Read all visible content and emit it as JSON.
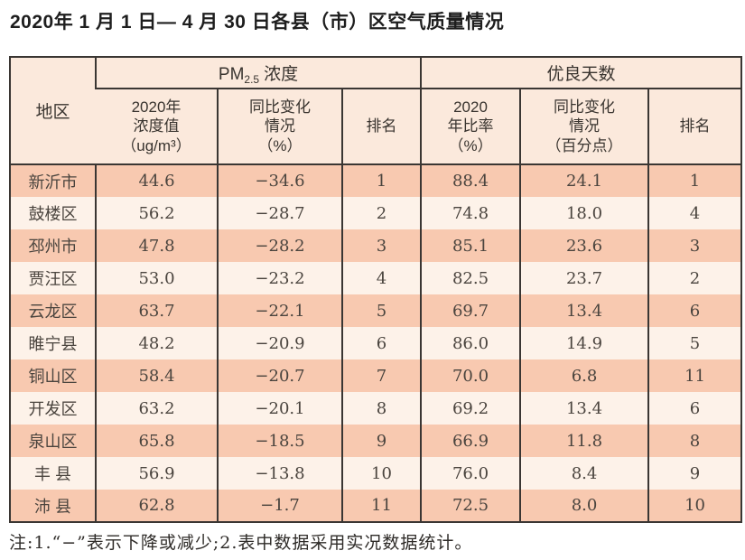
{
  "title": "2020年 1 月 1 日— 4 月 30 日各县（市）区空气质量情况",
  "note": "注:1.“−”表示下降或减少;2.表中数据采用实况数据统计。",
  "colors": {
    "row_odd": "#f8c9b0",
    "row_even": "#fdf2e9",
    "header_bg": "#fbe9dc",
    "border": "#3a3633"
  },
  "table": {
    "corner_header": "地区",
    "group_pm25": {
      "prefix": "PM",
      "sub": "2.5",
      "suffix": "浓度"
    },
    "group_good_days": "优良天数",
    "subheaders": {
      "pm_value": "2020年\n浓度值\n（ug/m³）",
      "pm_change": "同比变化\n情况\n（%）",
      "pm_rank": "排名",
      "good_ratio": "2020\n年比率\n（%）",
      "good_change": "同比变化\n情况\n（百分点）",
      "good_rank": "排名"
    },
    "rows": [
      {
        "region": "新沂市",
        "values": [
          "44.6",
          "−34.6",
          "1",
          "88.4",
          "24.1",
          "1"
        ]
      },
      {
        "region": "鼓楼区",
        "values": [
          "56.2",
          "−28.7",
          "2",
          "74.8",
          "18.0",
          "4"
        ]
      },
      {
        "region": "邳州市",
        "values": [
          "47.8",
          "−28.2",
          "3",
          "85.1",
          "23.6",
          "3"
        ]
      },
      {
        "region": "贾汪区",
        "values": [
          "53.0",
          "−23.2",
          "4",
          "82.5",
          "23.7",
          "2"
        ]
      },
      {
        "region": "云龙区",
        "values": [
          "63.7",
          "−22.1",
          "5",
          "69.7",
          "13.4",
          "6"
        ]
      },
      {
        "region": "睢宁县",
        "values": [
          "48.2",
          "−20.9",
          "6",
          "86.0",
          "14.9",
          "5"
        ]
      },
      {
        "region": "铜山区",
        "values": [
          "58.4",
          "−20.7",
          "7",
          "70.0",
          "6.8",
          "11"
        ]
      },
      {
        "region": "开发区",
        "values": [
          "63.2",
          "−20.1",
          "8",
          "69.2",
          "13.4",
          "6"
        ]
      },
      {
        "region": "泉山区",
        "values": [
          "65.8",
          "−18.5",
          "9",
          "66.9",
          "11.8",
          "8"
        ]
      },
      {
        "region": "丰 县",
        "values": [
          "56.9",
          "−13.8",
          "10",
          "76.0",
          "8.4",
          "9"
        ]
      },
      {
        "region": "沛 县",
        "values": [
          "62.8",
          "−1.7",
          "11",
          "72.5",
          "8.0",
          "10"
        ]
      }
    ]
  },
  "chart_data": {
    "type": "table",
    "title": "2020年 1 月 1 日— 4 月 30 日各县（市）区空气质量情况",
    "column_groups": [
      "PM2.5 浓度",
      "优良天数"
    ],
    "columns": [
      "地区",
      "2020年浓度值（ug/m³）",
      "同比变化情况（%）",
      "排名",
      "2020年比率（%）",
      "同比变化情况（百分点）",
      "排名"
    ],
    "rows": [
      [
        "新沂市",
        44.6,
        -34.6,
        1,
        88.4,
        24.1,
        1
      ],
      [
        "鼓楼区",
        56.2,
        -28.7,
        2,
        74.8,
        18.0,
        4
      ],
      [
        "邳州市",
        47.8,
        -28.2,
        3,
        85.1,
        23.6,
        3
      ],
      [
        "贾汪区",
        53.0,
        -23.2,
        4,
        82.5,
        23.7,
        2
      ],
      [
        "云龙区",
        63.7,
        -22.1,
        5,
        69.7,
        13.4,
        6
      ],
      [
        "睢宁县",
        48.2,
        -20.9,
        6,
        86.0,
        14.9,
        5
      ],
      [
        "铜山区",
        58.4,
        -20.7,
        7,
        70.0,
        6.8,
        11
      ],
      [
        "开发区",
        63.2,
        -20.1,
        8,
        69.2,
        13.4,
        6
      ],
      [
        "泉山区",
        65.8,
        -18.5,
        9,
        66.9,
        11.8,
        8
      ],
      [
        "丰县",
        56.9,
        -13.8,
        10,
        76.0,
        8.4,
        9
      ],
      [
        "沛县",
        62.8,
        -1.7,
        11,
        72.5,
        8.0,
        10
      ]
    ],
    "footnote": "注:1.“−”表示下降或减少;2.表中数据采用实况数据统计。"
  }
}
